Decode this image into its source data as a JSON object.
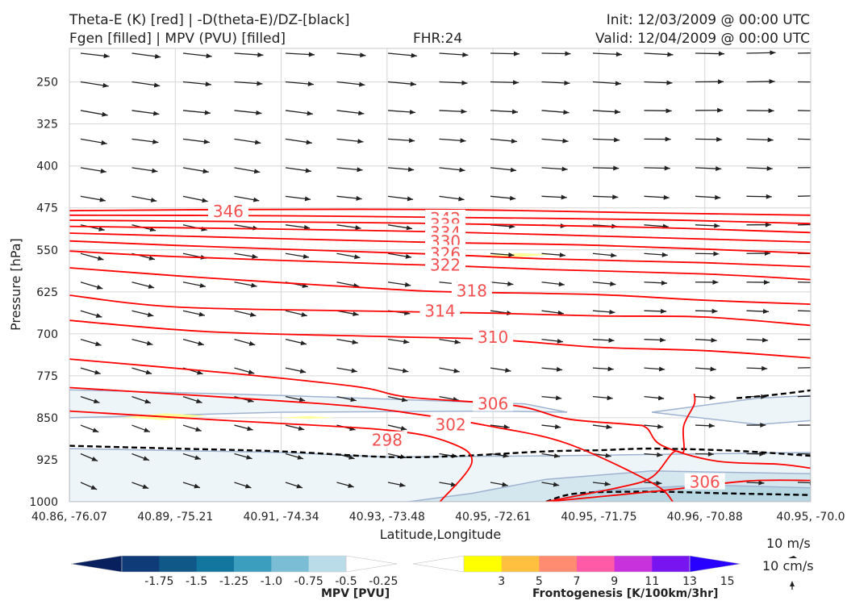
{
  "header": {
    "title_line1": "Theta-E (K) [red] | -D(theta-E)/DZ-[black]",
    "title_line2": "Fgen [filled] | MPV (PVU) [filled]",
    "fhr": "FHR:24",
    "init": "Init: 12/03/2009 @ 00:00 UTC",
    "valid": "Valid: 12/04/2009 @ 00:00 UTC"
  },
  "colors": {
    "theta_e": "#ff0000",
    "theta_e_label": "#f25050",
    "dtheta_dz": "#000000",
    "wind_arrow": "#222222",
    "mpv_fill_light": "#eef5f8",
    "mpv_fill_mid": "#d4e6ee",
    "mpv_fill_dark": "#b6d6e2",
    "mpv_edge": "#9fb3d1",
    "fgen_fill": "#fefe9a"
  },
  "chart_data": {
    "type": "cross-section",
    "xlabel": "Latitude,Longitude",
    "ylabel": "Pressure [hPa]",
    "x_ticks": [
      "40.86, -76.07",
      "40.89, -75.21",
      "40.91, -74.34",
      "40.93, -73.48",
      "40.95, -72.61",
      "40.95, -71.75",
      "40.96, -70.88",
      "40.95, -70.0"
    ],
    "y_ticks": [
      250,
      325,
      400,
      475,
      550,
      625,
      700,
      775,
      850,
      925,
      1000
    ],
    "ylim": [
      1000,
      190
    ],
    "y_inverted": true,
    "theta_e_contours": [
      {
        "value": 298,
        "points": [
          [
            0,
            838
          ],
          [
            1.5,
            855
          ],
          [
            3.0,
            872
          ],
          [
            3.6,
            895
          ],
          [
            3.8,
            930
          ],
          [
            3.5,
            1000
          ]
        ]
      },
      {
        "value": 302,
        "points": [
          [
            0,
            796
          ],
          [
            2.4,
            825
          ],
          [
            3.3,
            844
          ],
          [
            4.0,
            866
          ],
          [
            4.7,
            896
          ],
          [
            5.5,
            966
          ],
          [
            5.7,
            1000
          ]
        ]
      },
      {
        "value": 306,
        "points": [
          [
            0,
            745
          ],
          [
            1.5,
            770
          ],
          [
            2.7,
            794
          ],
          [
            3.2,
            813
          ],
          [
            4.2,
            828
          ],
          [
            4.7,
            852
          ],
          [
            5.3,
            862
          ],
          [
            5.45,
            868
          ],
          [
            5.6,
            900
          ],
          [
            6.1,
            927
          ],
          [
            6.7,
            933
          ],
          [
            7.0,
            940
          ]
        ]
      },
      {
        "value": 306,
        "points": [
          [
            4.5,
            1000
          ],
          [
            5.2,
            974
          ],
          [
            5.5,
            956
          ],
          [
            5.7,
            912
          ],
          [
            5.8,
            910
          ],
          [
            5.8,
            865
          ],
          [
            5.9,
            826
          ],
          [
            5.9,
            807
          ]
        ]
      },
      {
        "value": 306,
        "points": [
          [
            4.5,
            1000
          ],
          [
            5.6,
            980
          ],
          [
            6.4,
            963
          ],
          [
            7.0,
            962
          ]
        ]
      },
      {
        "value": 310,
        "points": [
          [
            0,
            676
          ],
          [
            1.3,
            696
          ],
          [
            3.0,
            705
          ],
          [
            4.0,
            710
          ],
          [
            5.0,
            724
          ],
          [
            6.0,
            730
          ],
          [
            7.0,
            743
          ]
        ]
      },
      {
        "value": 314,
        "points": [
          [
            0,
            631
          ],
          [
            1.0,
            652
          ],
          [
            2.7,
            659
          ],
          [
            4.0,
            663
          ],
          [
            5.0,
            668
          ],
          [
            6.0,
            670
          ],
          [
            7.0,
            685
          ]
        ]
      },
      {
        "value": 318,
        "points": [
          [
            0,
            582
          ],
          [
            1.3,
            600
          ],
          [
            3.0,
            620
          ],
          [
            3.6,
            625
          ],
          [
            5.0,
            630
          ],
          [
            6.0,
            640
          ],
          [
            7.0,
            647
          ]
        ]
      },
      {
        "value": 322,
        "points": [
          [
            0,
            552
          ],
          [
            1.0,
            562
          ],
          [
            3.0,
            575
          ],
          [
            3.55,
            578
          ],
          [
            4.5,
            585
          ],
          [
            6.0,
            593
          ],
          [
            7.0,
            603
          ]
        ]
      },
      {
        "value": 326,
        "points": [
          [
            0,
            534
          ],
          [
            1.0,
            542
          ],
          [
            3.0,
            555
          ],
          [
            3.5,
            558
          ],
          [
            4.5,
            566
          ],
          [
            6.0,
            573
          ],
          [
            7.0,
            580
          ]
        ]
      },
      {
        "value": 330,
        "points": [
          [
            0,
            520
          ],
          [
            2.0,
            530
          ],
          [
            3.55,
            537
          ],
          [
            5.0,
            542
          ],
          [
            7.0,
            556
          ]
        ]
      },
      {
        "value": 334,
        "points": [
          [
            0,
            508
          ],
          [
            2.0,
            513
          ],
          [
            3.55,
            518
          ],
          [
            5.5,
            528
          ],
          [
            7.0,
            536
          ]
        ]
      },
      {
        "value": 338,
        "points": [
          [
            0,
            497
          ],
          [
            2.0,
            500
          ],
          [
            3.55,
            503
          ],
          [
            5.5,
            510
          ],
          [
            7.0,
            519
          ]
        ]
      },
      {
        "value": 342,
        "points": [
          [
            0,
            488
          ],
          [
            2.0,
            489
          ],
          [
            3.55,
            492
          ],
          [
            5.5,
            496
          ],
          [
            7.0,
            503
          ]
        ]
      },
      {
        "value": 346,
        "points": [
          [
            0,
            480
          ],
          [
            1.5,
            478
          ],
          [
            3.55,
            478
          ],
          [
            5.5,
            484
          ],
          [
            7.0,
            488
          ]
        ]
      }
    ],
    "theta_e_labels": [
      {
        "text": "346",
        "x": 1.5,
        "y": 481
      },
      {
        "text": "342",
        "x": 3.55,
        "y": 494
      },
      {
        "text": "338",
        "x": 3.55,
        "y": 505
      },
      {
        "text": "334",
        "x": 3.55,
        "y": 519
      },
      {
        "text": "330",
        "x": 3.55,
        "y": 535
      },
      {
        "text": "326",
        "x": 3.55,
        "y": 557
      },
      {
        "text": "322",
        "x": 3.55,
        "y": 577
      },
      {
        "text": "318",
        "x": 3.8,
        "y": 623
      },
      {
        "text": "314",
        "x": 3.5,
        "y": 659
      },
      {
        "text": "310",
        "x": 4.0,
        "y": 706
      },
      {
        "text": "306",
        "x": 4.0,
        "y": 825
      },
      {
        "text": "302",
        "x": 3.6,
        "y": 862
      },
      {
        "text": "298",
        "x": 3.0,
        "y": 890
      },
      {
        "text": "306",
        "x": 6.0,
        "y": 965
      }
    ],
    "dthetae_dz_contours": [
      {
        "value": 0,
        "points": [
          [
            0,
            900
          ],
          [
            1.0,
            905
          ],
          [
            2.0,
            910
          ],
          [
            3.0,
            920
          ],
          [
            3.7,
            918
          ],
          [
            4.5,
            910
          ],
          [
            5.0,
            908
          ],
          [
            5.5,
            905
          ],
          [
            6.3,
            909
          ],
          [
            7.0,
            918
          ]
        ]
      },
      {
        "value": 0,
        "points": [
          [
            6.3,
            815
          ],
          [
            6.6,
            810
          ],
          [
            7.0,
            801
          ]
        ]
      },
      {
        "value": 0,
        "points": [
          [
            4.5,
            1000
          ],
          [
            4.8,
            985
          ],
          [
            5.5,
            982
          ],
          [
            6.2,
            985
          ],
          [
            7.0,
            988
          ]
        ]
      }
    ],
    "mpv_filled": [
      {
        "level": "-0.25",
        "points": [
          [
            0,
            800
          ],
          [
            2.0,
            810
          ],
          [
            4.3,
            825
          ],
          [
            4.7,
            840
          ],
          [
            4.0,
            838
          ],
          [
            2.0,
            840
          ],
          [
            0,
            850
          ]
        ]
      },
      {
        "level": "-0.25",
        "points": [
          [
            5.5,
            840
          ],
          [
            6.5,
            815
          ],
          [
            7.0,
            810
          ],
          [
            7.0,
            855
          ],
          [
            6.5,
            862
          ]
        ]
      },
      {
        "level": "-0.25",
        "points": [
          [
            0,
            905
          ],
          [
            2.0,
            912
          ],
          [
            3.0,
            920
          ],
          [
            4.5,
            918
          ],
          [
            7.0,
            912
          ],
          [
            7.0,
            1000
          ],
          [
            0,
            1000
          ]
        ]
      },
      {
        "level": "-0.5",
        "points": [
          [
            3.2,
            1000
          ],
          [
            3.8,
            985
          ],
          [
            4.5,
            960
          ],
          [
            5.5,
            945
          ],
          [
            7.0,
            950
          ],
          [
            7.0,
            1000
          ]
        ]
      },
      {
        "level": "-0.75",
        "points": [
          [
            4.5,
            1000
          ],
          [
            5.0,
            980
          ],
          [
            6.0,
            970
          ],
          [
            7.0,
            975
          ],
          [
            7.0,
            1000
          ]
        ]
      }
    ],
    "fgen_filled": [
      {
        "level": "3",
        "points": [
          [
            0.5,
            849
          ],
          [
            0.9,
            842
          ],
          [
            1.3,
            846
          ],
          [
            0.9,
            854
          ]
        ]
      },
      {
        "level": "3",
        "points": [
          [
            2.0,
            850
          ],
          [
            2.25,
            847
          ],
          [
            2.5,
            850
          ],
          [
            2.25,
            852
          ]
        ]
      },
      {
        "level": "3",
        "points": [
          [
            3.9,
            560
          ],
          [
            4.25,
            556
          ],
          [
            4.55,
            558
          ],
          [
            4.25,
            563
          ]
        ]
      }
    ],
    "wind_arrows": {
      "columns": 15,
      "rows": 16
    },
    "mpv_colorbar": {
      "title": "MPV [PVU]",
      "ticks": [
        "-1.75",
        "-1.5",
        "-1.25",
        "-1.0",
        "-0.75",
        "-0.5",
        "-0.25"
      ],
      "colors": [
        "#08205e",
        "#0f3b78",
        "#0f5888",
        "#12769e",
        "#3c9ebf",
        "#7bbdd4",
        "#b9dce8",
        "#ffffff"
      ]
    },
    "fgen_colorbar": {
      "title": "Frontogenesis [K/100km/3hr]",
      "ticks": [
        "3",
        "5",
        "7",
        "9",
        "11",
        "13",
        "15"
      ],
      "colors": [
        "#ffffff",
        "#ffff00",
        "#ffc040",
        "#ff8c70",
        "#ff5aa8",
        "#c832dc",
        "#7814f0",
        "#2800ff"
      ]
    },
    "quiver_keys": [
      "10 m/s",
      "10 cm/s"
    ]
  }
}
